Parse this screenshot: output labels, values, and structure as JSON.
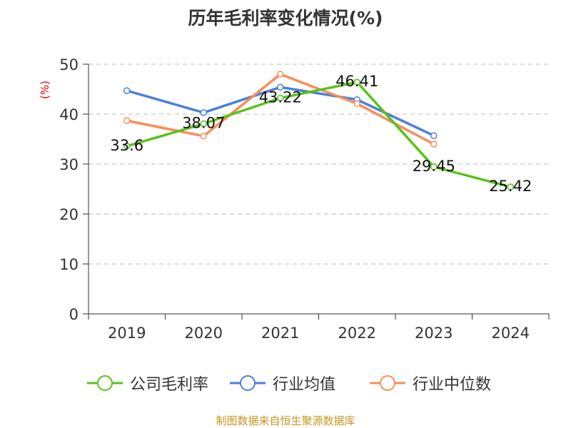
{
  "chart_data": {
    "type": "line",
    "title": "历年毛利率变化情况(%)",
    "ylabel": "(%)",
    "xlabel": "",
    "categories": [
      "2019",
      "2020",
      "2021",
      "2022",
      "2023",
      "2024"
    ],
    "ylim": [
      0,
      50
    ],
    "yticks": [
      0,
      10,
      20,
      30,
      40,
      50
    ],
    "grid": true,
    "legend_position": "bottom",
    "series": [
      {
        "name": "公司毛利率",
        "color": "#5ac21a",
        "values": [
          33.6,
          38.07,
          43.22,
          46.41,
          29.45,
          25.42
        ],
        "labels": [
          "33.6",
          "38.07",
          "43.22",
          "46.41",
          "29.45",
          "25.42"
        ]
      },
      {
        "name": "行业均值",
        "color": "#4a7fe0",
        "values": [
          44.7,
          40.3,
          45.4,
          42.9,
          35.7,
          null
        ]
      },
      {
        "name": "行业中位数",
        "color": "#fa8c5a",
        "values": [
          38.7,
          35.6,
          48.0,
          42.1,
          34.0,
          null
        ]
      }
    ]
  },
  "source": "制图数据来自恒生聚源数据库"
}
